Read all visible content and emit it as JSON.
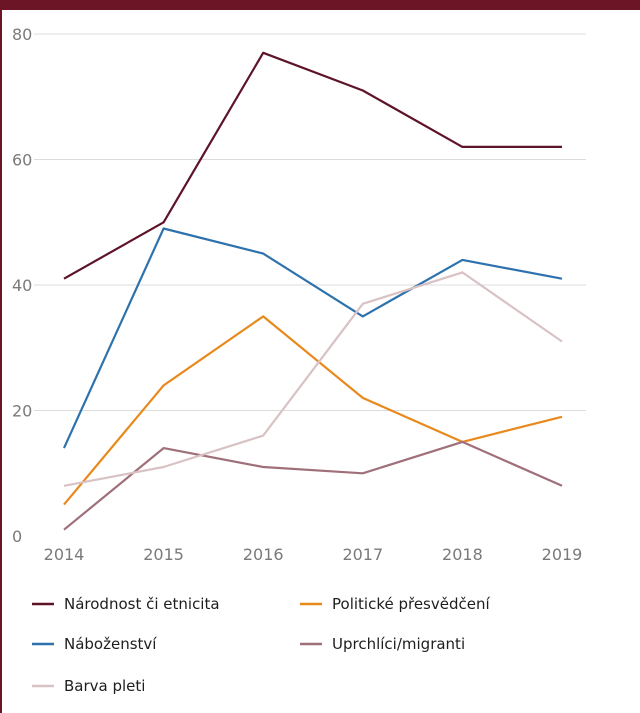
{
  "chart_data": {
    "type": "line",
    "title": "",
    "xlabel": "",
    "ylabel": "",
    "x": [
      "2014",
      "2015",
      "2016",
      "2017",
      "2018",
      "2019"
    ],
    "ylim": [
      0,
      80
    ],
    "yticks": [
      0,
      20,
      40,
      60,
      80
    ],
    "grid": "horizontal",
    "legend_placement": "bottom",
    "series": [
      {
        "name": "Národnost či etnicita",
        "color": "#5e1428",
        "values": [
          41,
          50,
          77,
          71,
          62,
          62
        ]
      },
      {
        "name": "Politické přesvědčení",
        "color": "#e8891c",
        "values": [
          5,
          24,
          35,
          22,
          15,
          19
        ]
      },
      {
        "name": "Náboženství",
        "color": "#2e72ad",
        "values": [
          14,
          49,
          45,
          35,
          44,
          41
        ]
      },
      {
        "name": "Uprchlíci/migranti",
        "color": "#a0707a",
        "values": [
          1,
          14,
          11,
          10,
          15,
          8
        ]
      },
      {
        "name": "Barva pleti",
        "color": "#d9c2c4",
        "values": [
          8,
          11,
          16,
          37,
          42,
          31
        ]
      }
    ]
  },
  "frame_color": "#6b1526"
}
